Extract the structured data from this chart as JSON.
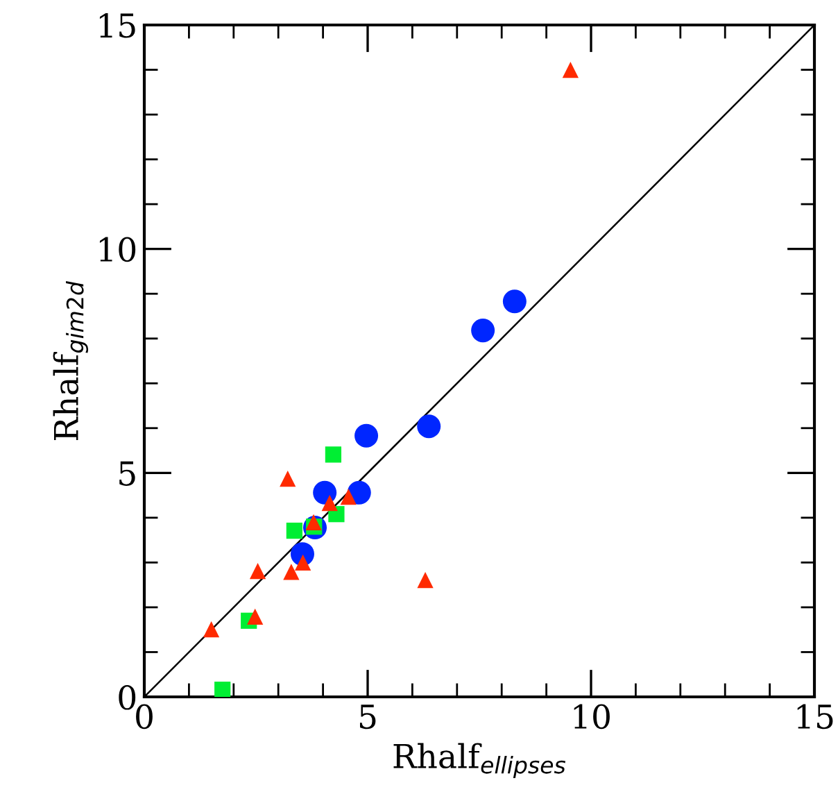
{
  "chart_data": {
    "type": "scatter",
    "xlabel": "Rhalf$_{ellipses}$",
    "ylabel": "Rhalf$_{gim2d}$",
    "xlim": [
      0,
      15
    ],
    "ylim": [
      0,
      15
    ],
    "xticks": [
      0,
      5,
      10,
      15
    ],
    "yticks": [
      0,
      5,
      10,
      15
    ],
    "grid": false,
    "legend": false,
    "series": [
      {
        "type": "line",
        "color": "#000000",
        "marker": "none",
        "line_style": "solid",
        "x": [
          0,
          15
        ],
        "values": [
          0,
          15
        ]
      },
      {
        "color": "#0026ff",
        "marker": "circle",
        "x": [
          3.54,
          3.82,
          4.04,
          4.81,
          4.97,
          6.37,
          7.58,
          8.29
        ],
        "values": [
          3.19,
          3.78,
          4.56,
          4.56,
          5.83,
          6.04,
          8.18,
          8.83
        ]
      },
      {
        "color": "#00ee33",
        "marker": "square",
        "x": [
          4.23,
          3.36,
          3.8,
          4.3,
          2.34,
          1.75
        ],
        "values": [
          5.41,
          3.71,
          3.8,
          4.08,
          1.7,
          0.16
        ]
      },
      {
        "color": "#ff2a00",
        "marker": "triangle",
        "x": [
          3.21,
          4.15,
          4.57,
          3.79,
          2.54,
          3.29,
          3.55,
          2.48,
          1.5,
          6.29,
          9.54
        ],
        "values": [
          4.87,
          4.33,
          4.47,
          3.9,
          2.81,
          2.79,
          3.0,
          1.79,
          1.51,
          2.61,
          14.0
        ]
      }
    ]
  }
}
